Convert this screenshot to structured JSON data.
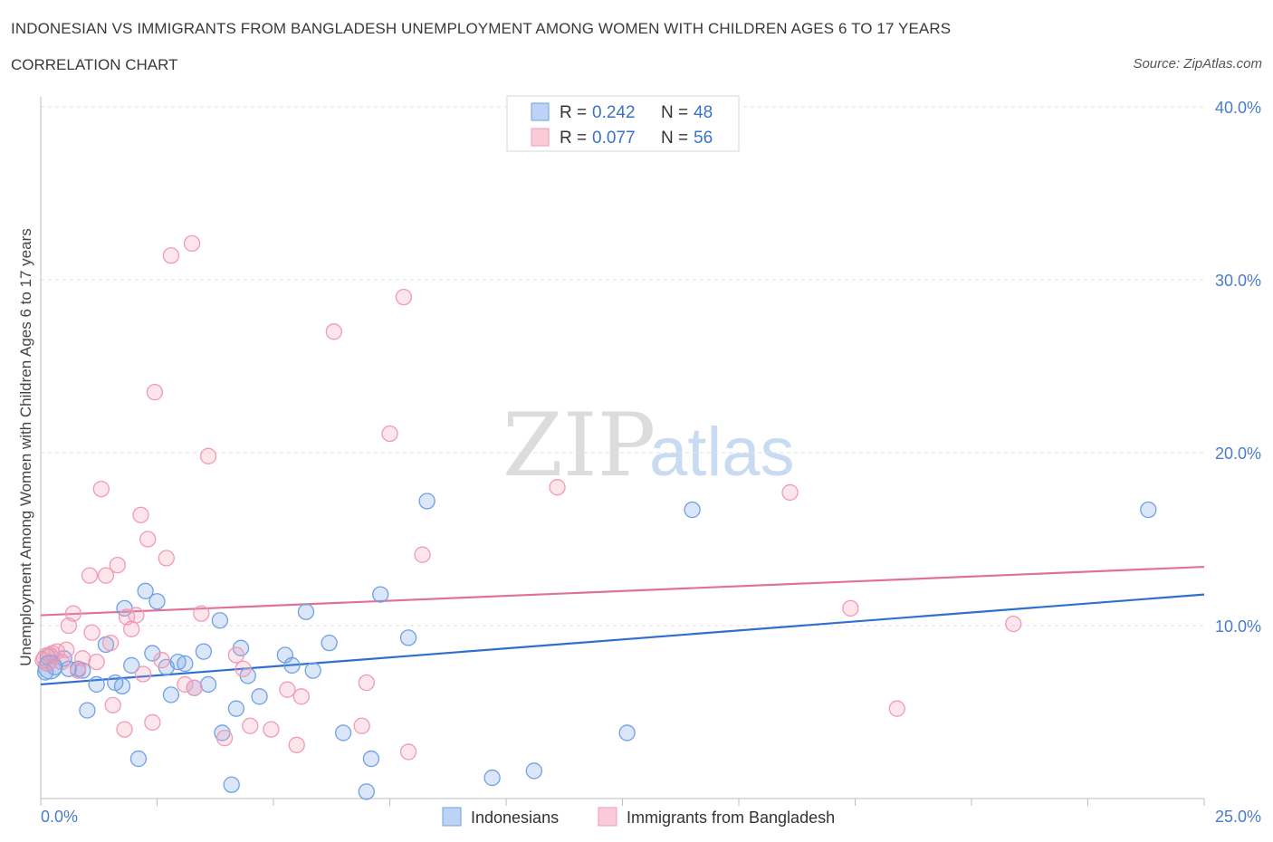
{
  "header": {
    "title": "INDONESIAN VS IMMIGRANTS FROM BANGLADESH UNEMPLOYMENT AMONG WOMEN WITH CHILDREN AGES 6 TO 17 YEARS",
    "subtitle": "CORRELATION CHART",
    "source": "Source: ZipAtlas.com"
  },
  "colors": {
    "indonesians": "#6fa0e6",
    "bangladesh": "#f29ab5",
    "indonesians_line": "#2f6fcf",
    "bangladesh_line": "#e0729a"
  },
  "legend": {
    "rows": [
      {
        "r_label": "R = ",
        "r_value": "0.242",
        "n_label": "N = ",
        "n_value": "48"
      },
      {
        "r_label": "R = ",
        "r_value": "0.077",
        "n_label": "N = ",
        "n_value": "56"
      }
    ]
  },
  "chart_data": {
    "type": "scatter",
    "title": "INDONESIAN VS IMMIGRANTS FROM BANGLADESH UNEMPLOYMENT AMONG WOMEN WITH CHILDREN AGES 6 TO 17 YEARS",
    "subtitle": "CORRELATION CHART",
    "xlabel": "",
    "ylabel": "Unemployment Among Women with Children Ages 6 to 17 years",
    "xlim": [
      0,
      25
    ],
    "ylim": [
      0,
      40
    ],
    "x_tick_labels": [
      "0.0%",
      "25.0%"
    ],
    "y_ticks": [
      10,
      20,
      30,
      40
    ],
    "y_tick_labels": [
      "10.0%",
      "20.0%",
      "30.0%",
      "40.0%"
    ],
    "grid": "horizontal dashed",
    "legend_position": "top-center",
    "series": [
      {
        "name": "Indonesians",
        "R": 0.242,
        "N": 48,
        "trend": {
          "x": [
            0,
            25
          ],
          "y": [
            6.6,
            11.8
          ]
        },
        "points": [
          [
            0.1,
            7.3
          ],
          [
            0.15,
            8.2
          ],
          [
            0.3,
            7.6
          ],
          [
            0.5,
            8.1
          ],
          [
            0.6,
            7.5
          ],
          [
            0.8,
            7.5
          ],
          [
            0.9,
            7.4
          ],
          [
            1.0,
            5.1
          ],
          [
            1.2,
            6.6
          ],
          [
            1.4,
            8.9
          ],
          [
            1.6,
            6.7
          ],
          [
            1.75,
            6.5
          ],
          [
            1.8,
            11.0
          ],
          [
            1.95,
            7.7
          ],
          [
            2.1,
            2.3
          ],
          [
            2.25,
            12.0
          ],
          [
            2.4,
            8.4
          ],
          [
            2.5,
            11.4
          ],
          [
            2.7,
            7.6
          ],
          [
            2.8,
            6.0
          ],
          [
            2.95,
            7.9
          ],
          [
            3.1,
            7.8
          ],
          [
            3.3,
            6.4
          ],
          [
            3.5,
            8.5
          ],
          [
            3.6,
            6.6
          ],
          [
            3.85,
            10.3
          ],
          [
            3.9,
            3.8
          ],
          [
            4.1,
            0.8
          ],
          [
            4.2,
            5.2
          ],
          [
            4.3,
            8.7
          ],
          [
            4.45,
            7.1
          ],
          [
            4.7,
            5.9
          ],
          [
            5.25,
            8.3
          ],
          [
            5.4,
            7.7
          ],
          [
            5.7,
            10.8
          ],
          [
            5.85,
            7.4
          ],
          [
            6.2,
            9.0
          ],
          [
            6.5,
            3.8
          ],
          [
            7.0,
            0.4
          ],
          [
            7.1,
            2.3
          ],
          [
            7.3,
            11.8
          ],
          [
            7.9,
            9.3
          ],
          [
            8.3,
            17.2
          ],
          [
            9.7,
            1.2
          ],
          [
            10.6,
            1.6
          ],
          [
            12.6,
            3.8
          ],
          [
            14.0,
            16.7
          ],
          [
            23.8,
            16.7
          ]
        ]
      },
      {
        "name": "Immigrants from Bangladesh",
        "R": 0.077,
        "N": 56,
        "trend": {
          "x": [
            0,
            25
          ],
          "y": [
            10.6,
            13.4
          ]
        },
        "points": [
          [
            0.05,
            8.0
          ],
          [
            0.2,
            8.3
          ],
          [
            0.35,
            8.5
          ],
          [
            0.45,
            7.9
          ],
          [
            0.55,
            8.6
          ],
          [
            0.6,
            10.0
          ],
          [
            0.7,
            10.7
          ],
          [
            0.8,
            7.4
          ],
          [
            0.9,
            8.1
          ],
          [
            1.05,
            12.9
          ],
          [
            1.1,
            9.6
          ],
          [
            1.2,
            7.9
          ],
          [
            1.3,
            17.9
          ],
          [
            1.4,
            12.9
          ],
          [
            1.5,
            9.0
          ],
          [
            1.55,
            5.4
          ],
          [
            1.65,
            13.5
          ],
          [
            1.8,
            4.0
          ],
          [
            1.85,
            10.5
          ],
          [
            1.95,
            9.8
          ],
          [
            2.05,
            10.6
          ],
          [
            2.15,
            16.4
          ],
          [
            2.2,
            7.2
          ],
          [
            2.3,
            15.0
          ],
          [
            2.4,
            4.4
          ],
          [
            2.45,
            23.5
          ],
          [
            2.6,
            8.0
          ],
          [
            2.7,
            13.9
          ],
          [
            2.8,
            31.4
          ],
          [
            3.1,
            6.6
          ],
          [
            3.25,
            32.1
          ],
          [
            3.3,
            6.4
          ],
          [
            3.45,
            10.7
          ],
          [
            3.6,
            19.8
          ],
          [
            3.95,
            3.5
          ],
          [
            4.2,
            8.3
          ],
          [
            4.35,
            7.5
          ],
          [
            4.5,
            4.2
          ],
          [
            4.95,
            4.0
          ],
          [
            5.3,
            6.3
          ],
          [
            5.5,
            3.1
          ],
          [
            5.6,
            5.9
          ],
          [
            6.3,
            27.0
          ],
          [
            6.9,
            4.2
          ],
          [
            7.0,
            6.7
          ],
          [
            7.5,
            21.1
          ],
          [
            7.8,
            29.0
          ],
          [
            7.9,
            2.7
          ],
          [
            8.2,
            14.1
          ],
          [
            11.1,
            18.0
          ],
          [
            16.1,
            17.7
          ],
          [
            17.4,
            11.0
          ],
          [
            18.4,
            5.2
          ],
          [
            20.9,
            10.1
          ],
          [
            0.15,
            7.8
          ],
          [
            0.25,
            8.4
          ]
        ]
      }
    ]
  },
  "bottom_legend": {
    "items": [
      {
        "label": "Indonesians"
      },
      {
        "label": "Immigrants from Bangladesh"
      }
    ]
  },
  "watermark": {
    "part1": "ZIP",
    "part2": "atlas"
  }
}
